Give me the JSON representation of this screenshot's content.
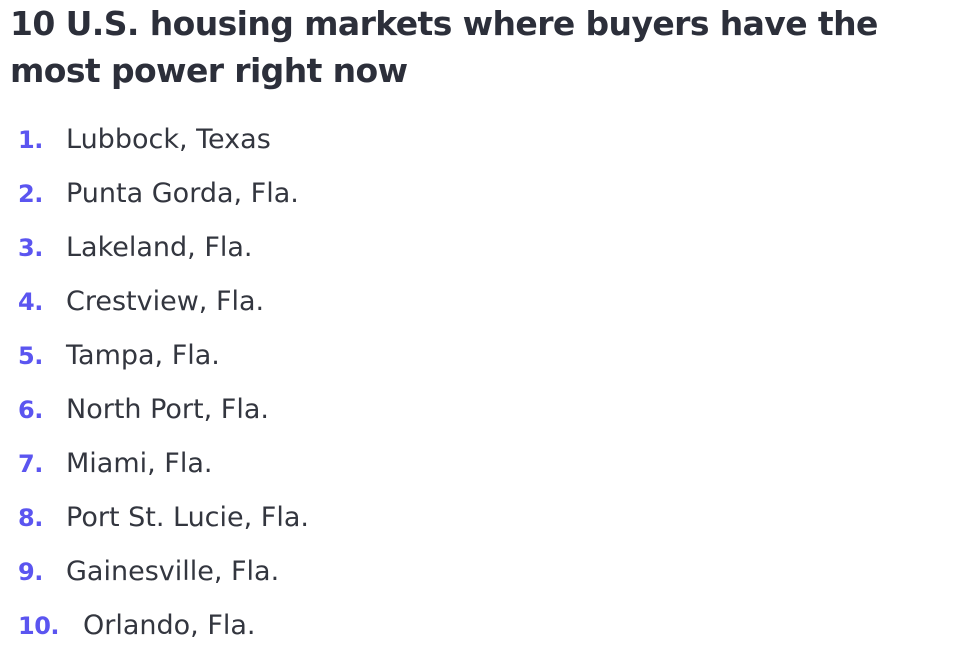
{
  "title": "10 U.S. housing markets where buyers have the most power right now",
  "list": [
    {
      "number": "1.",
      "city": "Lubbock, Texas"
    },
    {
      "number": "2.",
      "city": "Punta Gorda, Fla."
    },
    {
      "number": "3.",
      "city": "Lakeland, Fla."
    },
    {
      "number": "4.",
      "city": "Crestview, Fla."
    },
    {
      "number": "5.",
      "city": "Tampa, Fla."
    },
    {
      "number": "6.",
      "city": "North Port, Fla."
    },
    {
      "number": "7.",
      "city": "Miami, Fla."
    },
    {
      "number": "8.",
      "city": "Port St. Lucie, Fla."
    },
    {
      "number": "9.",
      "city": "Gainesville, Fla."
    },
    {
      "number": "10.",
      "city": "Orlando, Fla."
    }
  ],
  "colors": {
    "number": "#5b55f0",
    "title": "#2c2f3a",
    "text": "#33363f",
    "background": "#ffffff"
  }
}
